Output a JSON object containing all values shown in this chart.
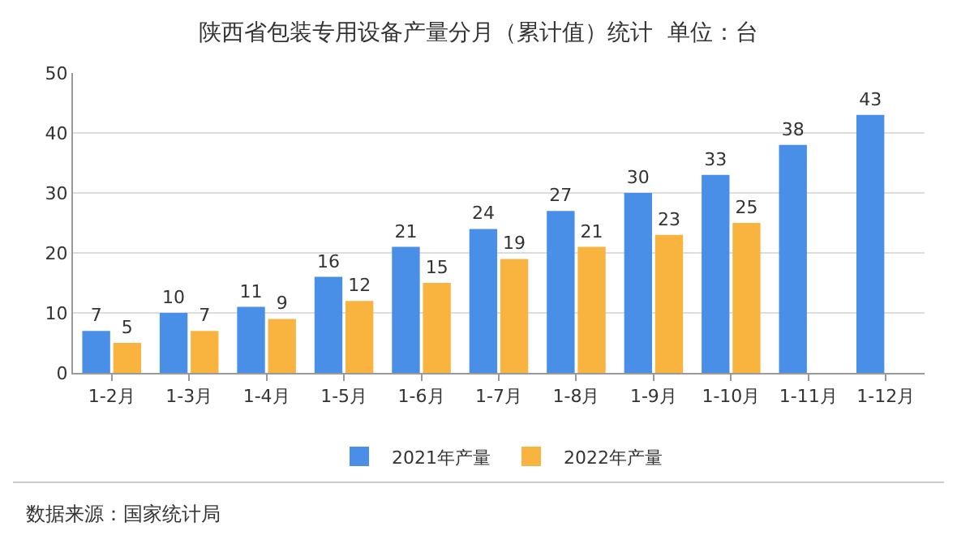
{
  "chart_data": {
    "type": "bar",
    "title": "陕西省包装专用设备产量分月（累计值）统计  单位：台",
    "categories": [
      "1-2月",
      "1-3月",
      "1-4月",
      "1-5月",
      "1-6月",
      "1-7月",
      "1-8月",
      "1-9月",
      "1-10月",
      "1-11月",
      "1-12月"
    ],
    "series": [
      {
        "name": "2021年产量",
        "color": "#4a8fe7",
        "values": [
          7,
          10,
          11,
          16,
          21,
          24,
          27,
          30,
          33,
          38,
          43
        ]
      },
      {
        "name": "2022年产量",
        "color": "#f9b440",
        "values": [
          5,
          7,
          9,
          12,
          15,
          19,
          21,
          23,
          25,
          null,
          null
        ]
      }
    ],
    "ylim": [
      0,
      50
    ],
    "yticks": [
      0,
      10,
      20,
      30,
      40,
      50
    ],
    "grid": "y",
    "legend": "bottom",
    "data_labels": true,
    "annotations": [
      "数据来源：国家统计局"
    ]
  }
}
